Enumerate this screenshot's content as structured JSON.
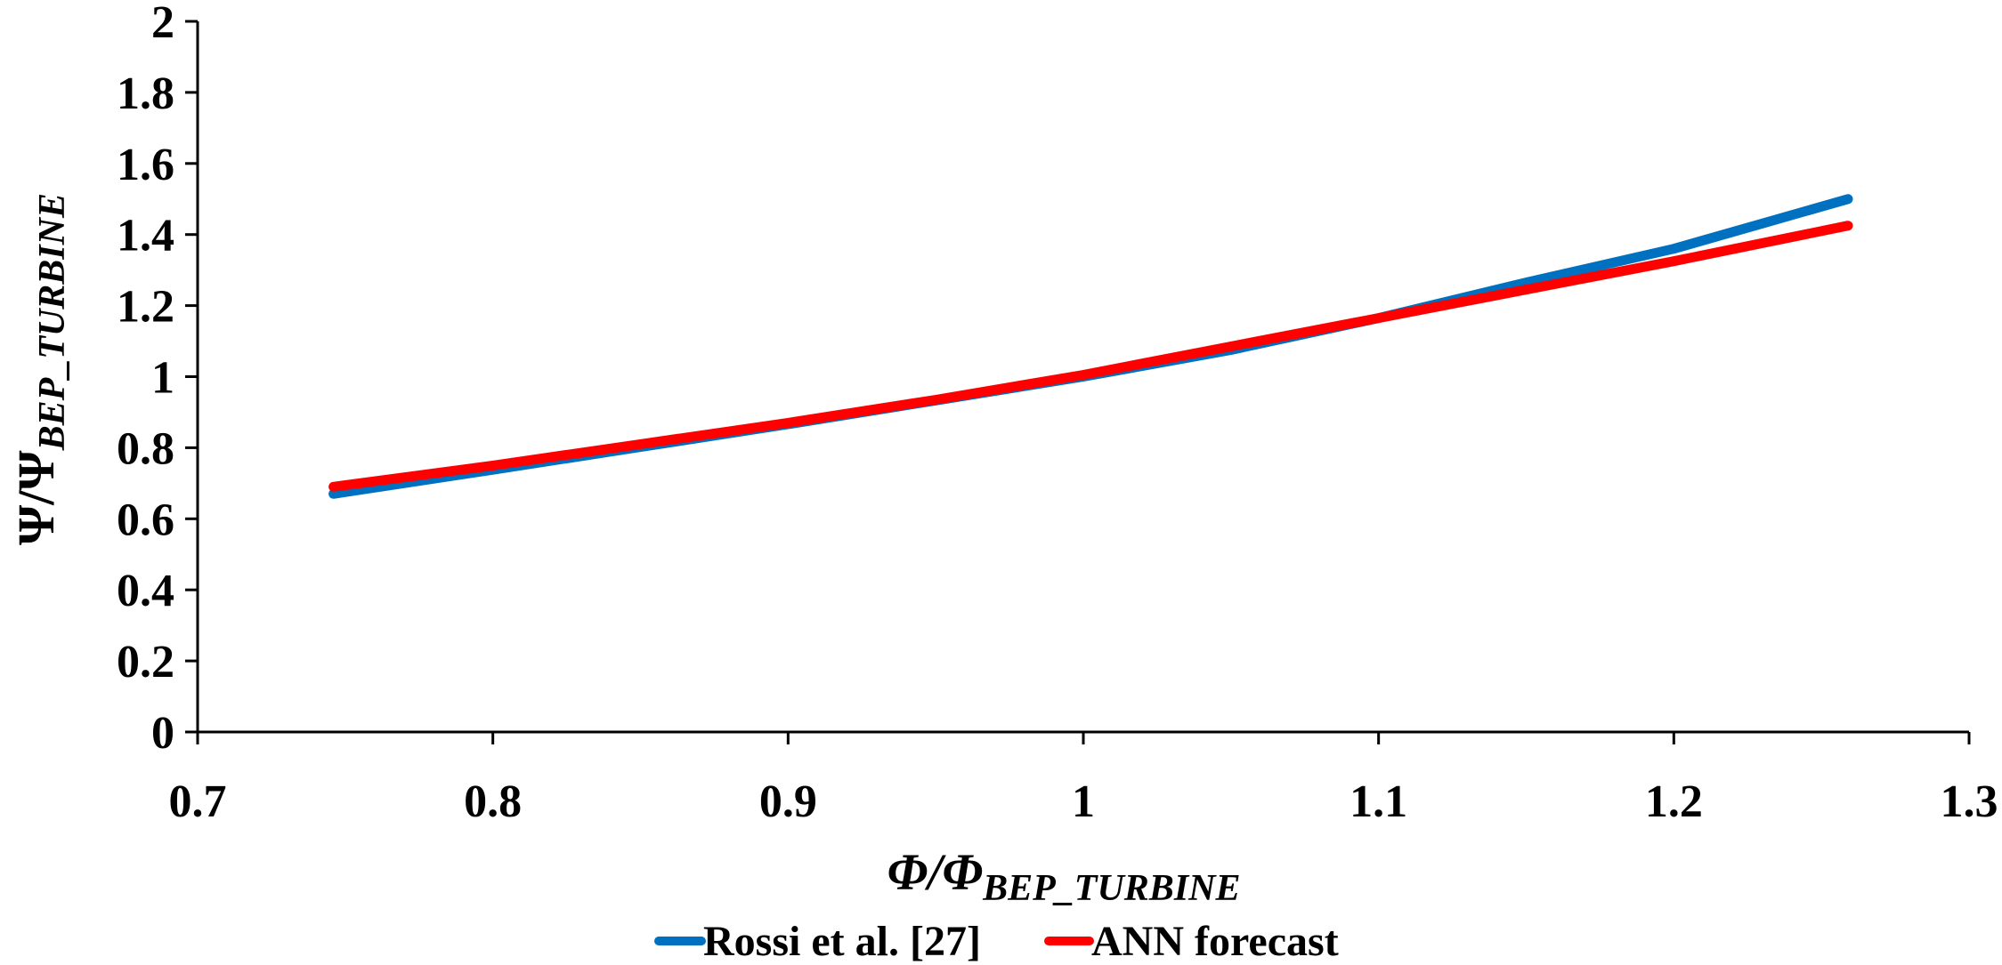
{
  "chart_data": {
    "type": "line",
    "xlabel": "Φ/Φ",
    "xlabel_sub": "BEP_TURBINE",
    "ylabel": "Ψ/Ψ",
    "ylabel_sub": "BEP_TURBINE",
    "xlim": [
      0.7,
      1.3
    ],
    "ylim": [
      0,
      2
    ],
    "x_ticks": [
      "0.7",
      "0.8",
      "0.9",
      "1",
      "1.1",
      "1.2",
      "1.3"
    ],
    "y_ticks": [
      "0",
      "0.2",
      "0.4",
      "0.6",
      "0.8",
      "1",
      "1.2",
      "1.4",
      "1.6",
      "1.8",
      "2"
    ],
    "grid": false,
    "legend_position": "bottom",
    "series": [
      {
        "name": "Rossi et al. [27]",
        "color": "#0070C0",
        "points": [
          [
            0.746,
            0.67
          ],
          [
            0.8,
            0.738
          ],
          [
            0.85,
            0.802
          ],
          [
            0.9,
            0.866
          ],
          [
            0.95,
            0.933
          ],
          [
            1.0,
            1.0
          ],
          [
            1.05,
            1.075
          ],
          [
            1.1,
            1.165
          ],
          [
            1.15,
            1.265
          ],
          [
            1.2,
            1.36
          ],
          [
            1.259,
            1.5
          ]
        ]
      },
      {
        "name": "ANN forecast",
        "color": "#FF0000",
        "points": [
          [
            0.746,
            0.69
          ],
          [
            0.8,
            0.75
          ],
          [
            0.85,
            0.81
          ],
          [
            0.9,
            0.87
          ],
          [
            0.95,
            0.935
          ],
          [
            1.0,
            1.005
          ],
          [
            1.05,
            1.085
          ],
          [
            1.1,
            1.165
          ],
          [
            1.15,
            1.245
          ],
          [
            1.2,
            1.325
          ],
          [
            1.259,
            1.425
          ]
        ]
      }
    ]
  }
}
